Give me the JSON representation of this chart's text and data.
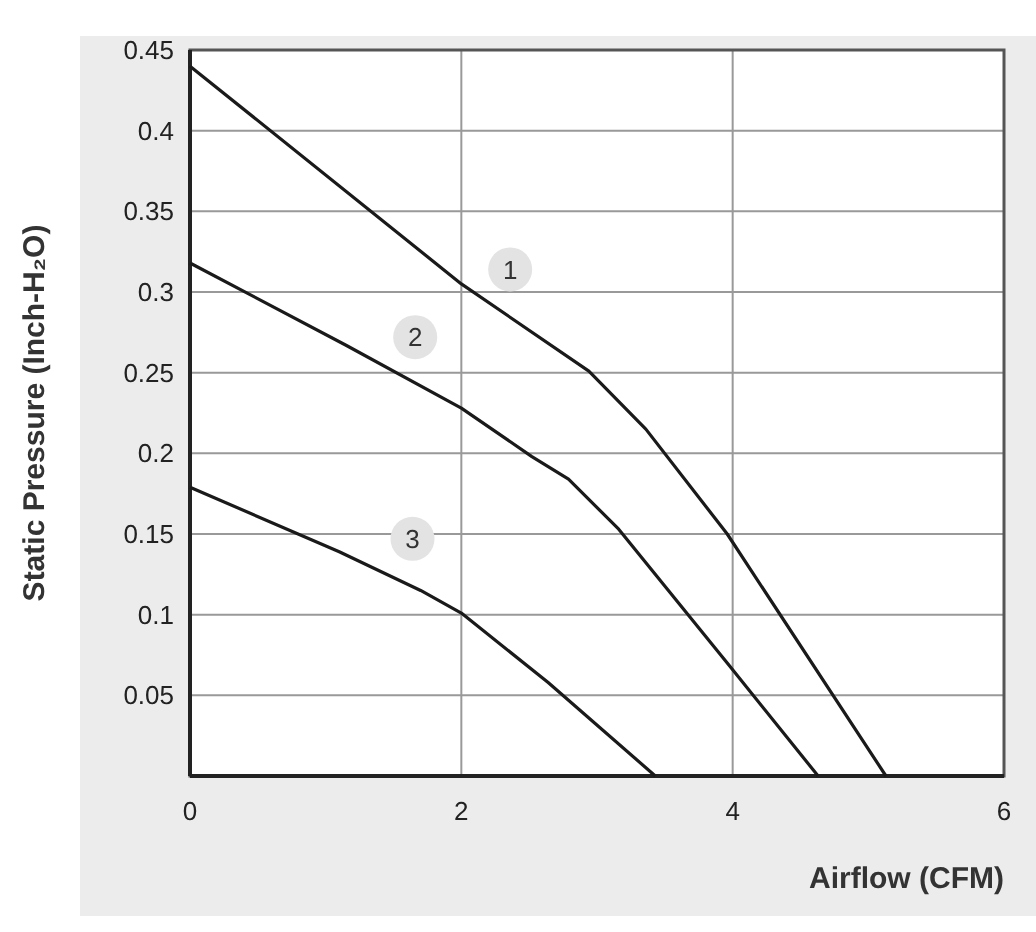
{
  "chart_data": {
    "type": "line",
    "xlabel": "Airflow (CFM)",
    "ylabel": "Static Pressure (Inch-H₂O)",
    "xlim": [
      0,
      6
    ],
    "ylim": [
      0,
      0.45
    ],
    "xticks": [
      0,
      2,
      4,
      6
    ],
    "yticks": [
      {
        "value": 0,
        "label": null
      },
      0.05,
      0.1,
      0.15,
      0.2,
      0.25,
      0.3,
      0.35,
      0.4,
      0.45
    ],
    "grid": true,
    "marker": "none",
    "line_style": "solid",
    "series": [
      {
        "name": "1",
        "color": "#1a1a1a",
        "x": [
          0,
          2,
          2.94,
          3.36,
          3.96,
          5.13
        ],
        "values": [
          0.44,
          0.305,
          0.251,
          0.215,
          0.15,
          0
        ]
      },
      {
        "name": "2",
        "color": "#1a1a1a",
        "x": [
          0,
          1.15,
          2,
          2.52,
          2.79,
          3.16,
          3.96,
          4.63
        ],
        "values": [
          0.318,
          0.267,
          0.228,
          0.198,
          0.184,
          0.153,
          0.07,
          0
        ]
      },
      {
        "name": "3",
        "color": "#1a1a1a",
        "x": [
          0,
          1.1,
          1.7,
          2,
          2.64,
          3.43
        ],
        "values": [
          0.179,
          0.139,
          0.115,
          0.101,
          0.058,
          0
        ]
      }
    ]
  }
}
